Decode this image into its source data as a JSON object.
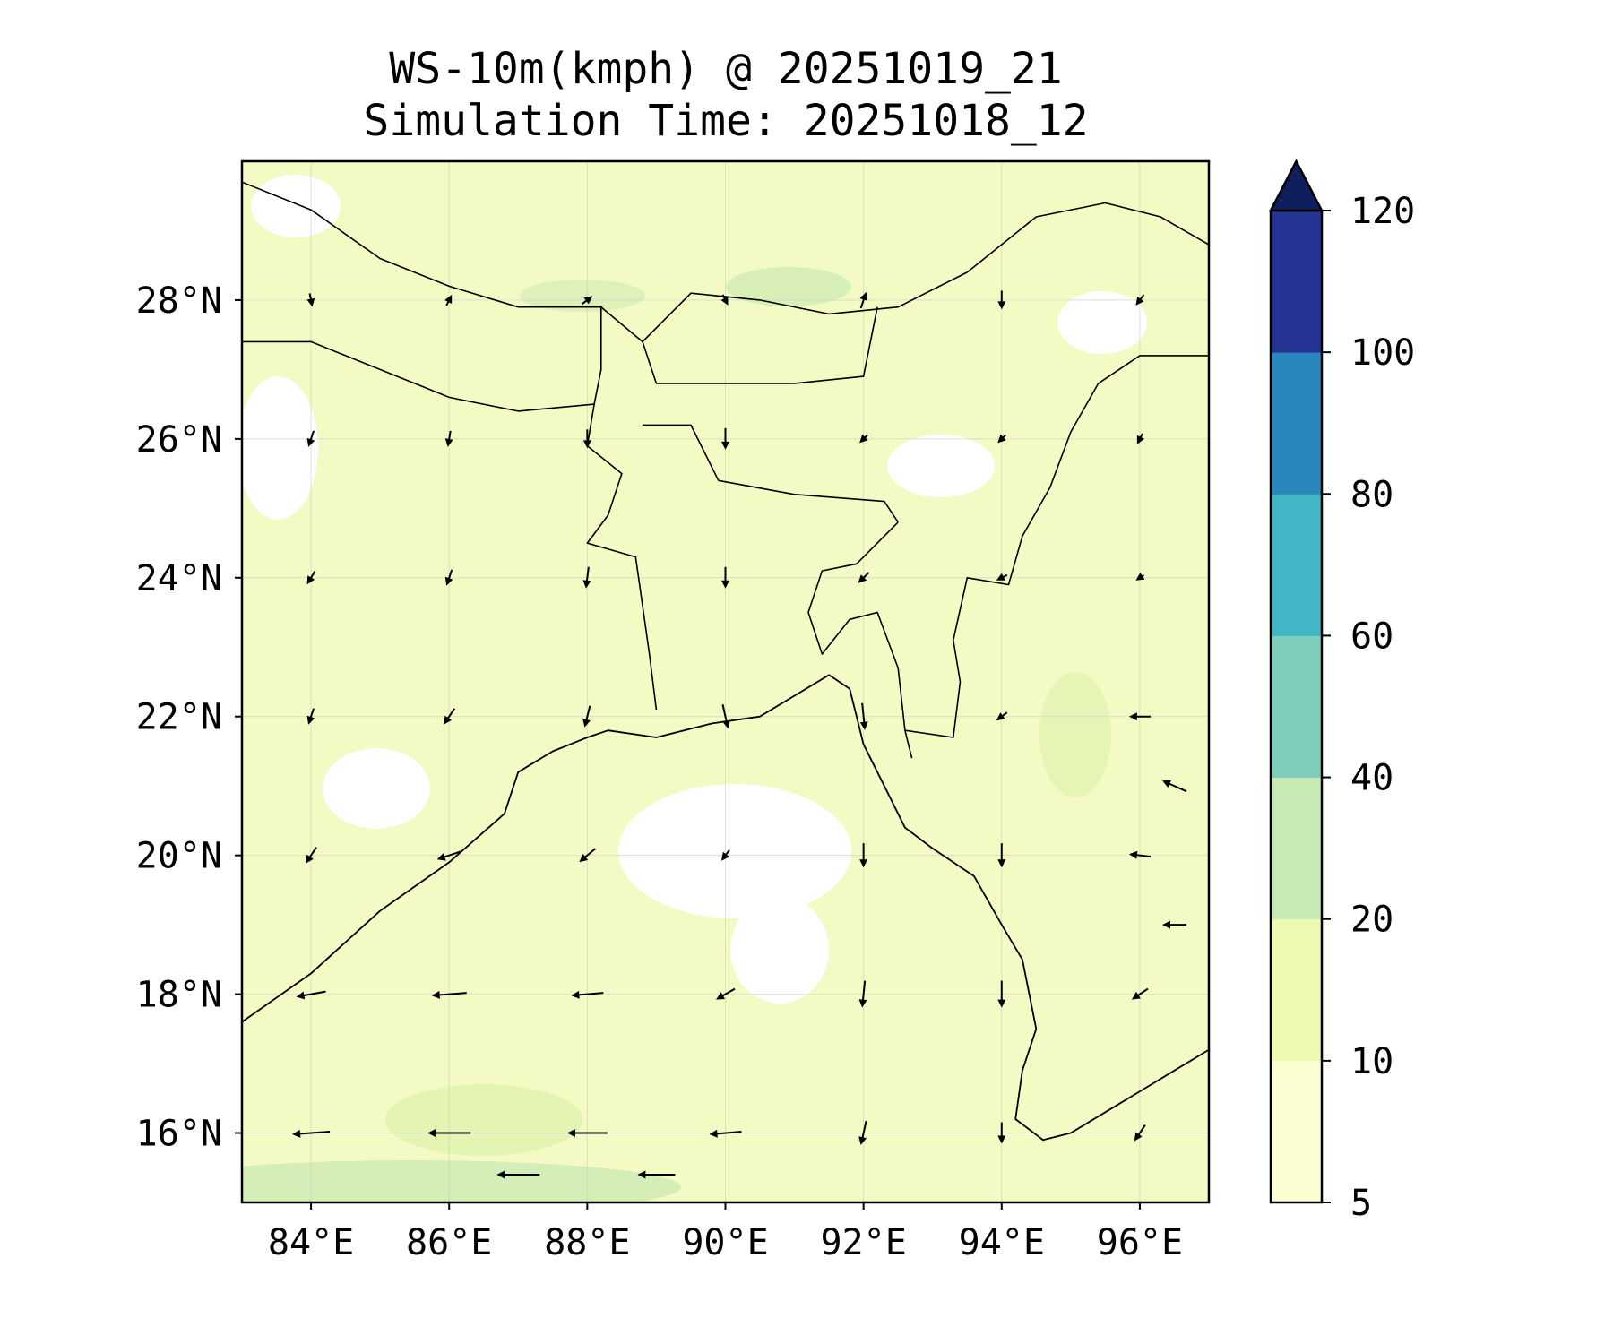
{
  "title": {
    "line1": "WS-10m(kmph) @ 20251019_21",
    "line2": "Simulation Time: 20251018_12"
  },
  "map": {
    "extent": {
      "lon": [
        83.0,
        97.0
      ],
      "lat": [
        15.0,
        30.0
      ]
    },
    "x_ticks": [
      {
        "value": 84,
        "label": "84°E"
      },
      {
        "value": 86,
        "label": "86°E"
      },
      {
        "value": 88,
        "label": "88°E"
      },
      {
        "value": 90,
        "label": "90°E"
      },
      {
        "value": 92,
        "label": "92°E"
      },
      {
        "value": 94,
        "label": "94°E"
      },
      {
        "value": 96,
        "label": "96°E"
      }
    ],
    "y_ticks": [
      {
        "value": 16,
        "label": "16°N"
      },
      {
        "value": 18,
        "label": "18°N"
      },
      {
        "value": 20,
        "label": "20°N"
      },
      {
        "value": 22,
        "label": "22°N"
      },
      {
        "value": 24,
        "label": "24°N"
      },
      {
        "value": 26,
        "label": "26°N"
      },
      {
        "value": 28,
        "label": "28°N"
      }
    ],
    "gridlines": true,
    "coastline": [
      [
        83.0,
        17.6
      ],
      [
        84.0,
        18.3
      ],
      [
        85.0,
        19.2
      ],
      [
        86.0,
        19.9
      ],
      [
        86.8,
        20.6
      ],
      [
        87.0,
        21.2
      ],
      [
        87.5,
        21.5
      ],
      [
        88.0,
        21.7
      ],
      [
        88.3,
        21.8
      ],
      [
        89.0,
        21.7
      ],
      [
        89.8,
        21.9
      ],
      [
        90.5,
        22.0
      ],
      [
        91.0,
        22.3
      ],
      [
        91.5,
        22.6
      ],
      [
        91.8,
        22.4
      ],
      [
        92.0,
        21.6
      ],
      [
        92.3,
        21.0
      ],
      [
        92.6,
        20.4
      ],
      [
        93.0,
        20.1
      ],
      [
        93.6,
        19.7
      ],
      [
        94.0,
        19.0
      ],
      [
        94.3,
        18.5
      ],
      [
        94.5,
        17.5
      ],
      [
        94.3,
        16.9
      ],
      [
        94.2,
        16.2
      ],
      [
        94.6,
        15.9
      ],
      [
        95.0,
        16.0
      ],
      [
        95.5,
        16.3
      ],
      [
        96.0,
        16.6
      ],
      [
        96.5,
        16.9
      ],
      [
        97.0,
        17.2
      ]
    ],
    "border_lines": [
      [
        [
          83.0,
          29.7
        ],
        [
          84.0,
          29.3
        ],
        [
          85.0,
          28.6
        ],
        [
          86.0,
          28.2
        ],
        [
          87.0,
          27.9
        ],
        [
          88.2,
          27.9
        ],
        [
          88.8,
          27.4
        ],
        [
          89.5,
          28.1
        ],
        [
          90.5,
          28.0
        ],
        [
          91.5,
          27.8
        ],
        [
          92.5,
          27.9
        ],
        [
          93.5,
          28.4
        ],
        [
          94.5,
          29.2
        ],
        [
          95.5,
          29.4
        ],
        [
          96.3,
          29.2
        ],
        [
          97.0,
          28.8
        ]
      ],
      [
        [
          83.0,
          27.4
        ],
        [
          84.0,
          27.4
        ],
        [
          85.0,
          27.0
        ],
        [
          86.0,
          26.6
        ],
        [
          87.0,
          26.4
        ],
        [
          88.1,
          26.5
        ],
        [
          88.2,
          27.0
        ],
        [
          88.2,
          27.9
        ]
      ],
      [
        [
          88.8,
          27.4
        ],
        [
          89.0,
          26.8
        ],
        [
          90.0,
          26.8
        ],
        [
          91.0,
          26.8
        ],
        [
          92.0,
          26.9
        ],
        [
          92.2,
          27.9
        ]
      ],
      [
        [
          88.1,
          26.5
        ],
        [
          88.0,
          25.9
        ],
        [
          88.5,
          25.5
        ],
        [
          88.3,
          24.9
        ],
        [
          88.0,
          24.5
        ],
        [
          88.7,
          24.3
        ],
        [
          88.8,
          23.6
        ],
        [
          88.9,
          22.9
        ],
        [
          89.0,
          22.1
        ]
      ],
      [
        [
          88.8,
          26.2
        ],
        [
          89.5,
          26.2
        ],
        [
          89.9,
          25.4
        ],
        [
          91.0,
          25.2
        ],
        [
          92.3,
          25.1
        ],
        [
          92.5,
          24.8
        ]
      ],
      [
        [
          92.5,
          24.8
        ],
        [
          91.9,
          24.2
        ],
        [
          91.4,
          24.1
        ],
        [
          91.2,
          23.5
        ],
        [
          91.4,
          22.9
        ],
        [
          91.8,
          23.4
        ],
        [
          92.2,
          23.5
        ],
        [
          92.5,
          22.7
        ],
        [
          92.6,
          21.8
        ],
        [
          92.7,
          21.4
        ]
      ],
      [
        [
          92.6,
          21.8
        ],
        [
          93.3,
          21.7
        ],
        [
          93.4,
          22.5
        ],
        [
          93.3,
          23.1
        ],
        [
          93.5,
          24.0
        ],
        [
          94.1,
          23.9
        ],
        [
          94.3,
          24.6
        ],
        [
          94.7,
          25.3
        ],
        [
          95.0,
          26.1
        ],
        [
          95.4,
          26.8
        ],
        [
          96.0,
          27.2
        ],
        [
          97.0,
          27.2
        ]
      ]
    ],
    "wind_vectors_kmph": [
      {
        "lon": 84.0,
        "lat": 16.0,
        "u": -14,
        "v": -1
      },
      {
        "lon": 86.0,
        "lat": 16.0,
        "u": -16,
        "v": 0
      },
      {
        "lon": 88.0,
        "lat": 16.0,
        "u": -15,
        "v": 0
      },
      {
        "lon": 90.0,
        "lat": 16.0,
        "u": -12,
        "v": -1
      },
      {
        "lon": 92.0,
        "lat": 16.0,
        "u": -2,
        "v": -9
      },
      {
        "lon": 94.0,
        "lat": 16.0,
        "u": 0,
        "v": -8
      },
      {
        "lon": 96.0,
        "lat": 16.0,
        "u": -4,
        "v": -6
      },
      {
        "lon": 84.0,
        "lat": 18.0,
        "u": -11,
        "v": -2
      },
      {
        "lon": 86.0,
        "lat": 18.0,
        "u": -13,
        "v": -1
      },
      {
        "lon": 88.0,
        "lat": 18.0,
        "u": -12,
        "v": -1
      },
      {
        "lon": 90.0,
        "lat": 18.0,
        "u": -7,
        "v": -4
      },
      {
        "lon": 92.0,
        "lat": 18.0,
        "u": -1,
        "v": -10
      },
      {
        "lon": 94.0,
        "lat": 18.0,
        "u": 0,
        "v": -10
      },
      {
        "lon": 96.0,
        "lat": 18.0,
        "u": -6,
        "v": -4
      },
      {
        "lon": 84.0,
        "lat": 20.0,
        "u": -4,
        "v": -6
      },
      {
        "lon": 86.0,
        "lat": 20.0,
        "u": -9,
        "v": -3
      },
      {
        "lon": 88.0,
        "lat": 20.0,
        "u": -6,
        "v": -5
      },
      {
        "lon": 90.0,
        "lat": 20.0,
        "u": -3,
        "v": -4
      },
      {
        "lon": 92.0,
        "lat": 20.0,
        "u": 0,
        "v": -9
      },
      {
        "lon": 94.0,
        "lat": 20.0,
        "u": 0,
        "v": -9
      },
      {
        "lon": 96.0,
        "lat": 20.0,
        "u": -8,
        "v": 1
      },
      {
        "lon": 84.0,
        "lat": 22.0,
        "u": -2,
        "v": -6
      },
      {
        "lon": 86.0,
        "lat": 22.0,
        "u": -4,
        "v": -6
      },
      {
        "lon": 88.0,
        "lat": 22.0,
        "u": -2,
        "v": -8
      },
      {
        "lon": 90.0,
        "lat": 22.0,
        "u": 2,
        "v": -9
      },
      {
        "lon": 92.0,
        "lat": 22.0,
        "u": 1,
        "v": -10
      },
      {
        "lon": 94.0,
        "lat": 22.0,
        "u": -4,
        "v": -3
      },
      {
        "lon": 96.0,
        "lat": 22.0,
        "u": -8,
        "v": 0
      },
      {
        "lon": 84.0,
        "lat": 24.0,
        "u": -3,
        "v": -5
      },
      {
        "lon": 86.0,
        "lat": 24.0,
        "u": -2,
        "v": -6
      },
      {
        "lon": 88.0,
        "lat": 24.0,
        "u": -1,
        "v": -8
      },
      {
        "lon": 90.0,
        "lat": 24.0,
        "u": 0,
        "v": -8
      },
      {
        "lon": 92.0,
        "lat": 24.0,
        "u": -4,
        "v": -4
      },
      {
        "lon": 94.0,
        "lat": 24.0,
        "u": -4,
        "v": -2
      },
      {
        "lon": 96.0,
        "lat": 24.0,
        "u": -3,
        "v": -2
      },
      {
        "lon": 84.0,
        "lat": 26.0,
        "u": -2,
        "v": -6
      },
      {
        "lon": 86.0,
        "lat": 26.0,
        "u": -1,
        "v": -6
      },
      {
        "lon": 88.0,
        "lat": 26.0,
        "u": 0,
        "v": -7
      },
      {
        "lon": 90.0,
        "lat": 26.0,
        "u": 0,
        "v": -8
      },
      {
        "lon": 92.0,
        "lat": 26.0,
        "u": -3,
        "v": -3
      },
      {
        "lon": 94.0,
        "lat": 26.0,
        "u": -3,
        "v": -3
      },
      {
        "lon": 96.0,
        "lat": 26.0,
        "u": -2,
        "v": -4
      },
      {
        "lon": 84.0,
        "lat": 28.0,
        "u": 1,
        "v": -5
      },
      {
        "lon": 86.0,
        "lat": 28.0,
        "u": 2,
        "v": 4
      },
      {
        "lon": 88.0,
        "lat": 28.0,
        "u": 4,
        "v": 3
      },
      {
        "lon": 90.0,
        "lat": 28.0,
        "u": 2,
        "v": -4
      },
      {
        "lon": 92.0,
        "lat": 28.0,
        "u": 2,
        "v": 6
      },
      {
        "lon": 94.0,
        "lat": 28.0,
        "u": 0,
        "v": -7
      },
      {
        "lon": 96.0,
        "lat": 28.0,
        "u": -3,
        "v": -4
      },
      {
        "lon": 96.5,
        "lat": 21.0,
        "u": -9,
        "v": 4
      },
      {
        "lon": 96.5,
        "lat": 19.0,
        "u": -9,
        "v": 0
      },
      {
        "lon": 87.0,
        "lat": 15.4,
        "u": -16,
        "v": 0
      },
      {
        "lon": 89.0,
        "lat": 15.4,
        "u": -14,
        "v": 0
      }
    ]
  },
  "colorbar": {
    "levels": [
      5,
      10,
      20,
      40,
      60,
      80,
      100,
      120
    ],
    "tick_labels": [
      "5",
      "10",
      "20",
      "40",
      "60",
      "80",
      "100",
      "120"
    ],
    "colors": [
      "#fcfed2",
      "#edf8b1",
      "#c7e9b4",
      "#7fcdbb",
      "#41b6c4",
      "#2a87bd",
      "#253494",
      "#0f1f5e"
    ],
    "extend": "max"
  }
}
